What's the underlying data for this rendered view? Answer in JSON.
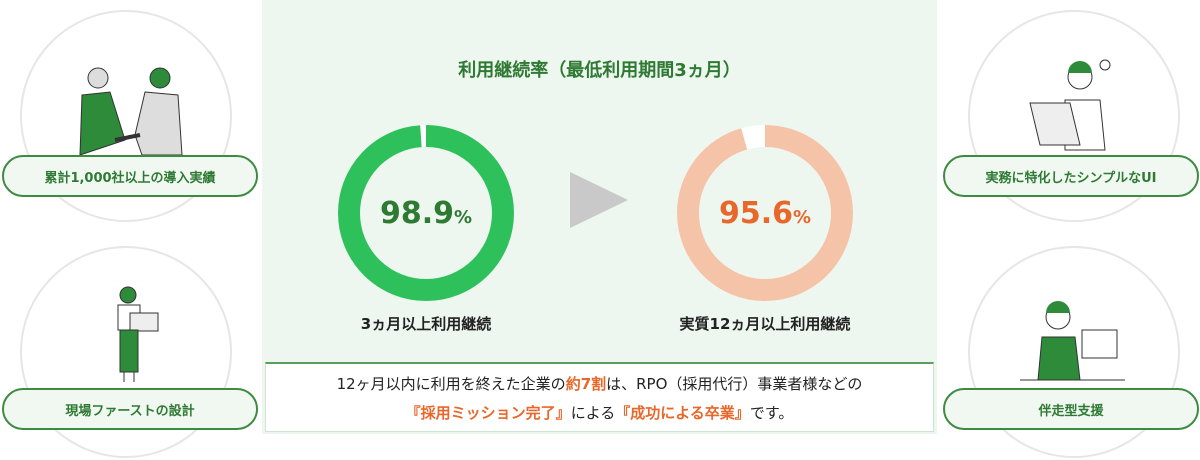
{
  "features": {
    "left": [
      {
        "label": "累計1,000社以上の導入実績",
        "icon": "handshake-illustration"
      },
      {
        "label": "現場ファーストの設計",
        "icon": "woman-with-laptop-illustration"
      }
    ],
    "right": [
      {
        "label": "実務に特化したシンプルなUI",
        "icon": "man-at-laptop-idea-illustration"
      },
      {
        "label": "伴走型支援",
        "icon": "woman-support-illustration"
      }
    ]
  },
  "panel": {
    "title": "利用継続率（最低利用期間3ヵ月）",
    "stats": [
      {
        "value": "98.9",
        "unit": "%",
        "percent": 98.9,
        "label": "3ヵ月以上利用継続",
        "color": "#2ec05a",
        "track": "#ffffff"
      },
      {
        "value": "95.6",
        "unit": "%",
        "percent": 95.6,
        "label": "実質12ヵ月以上利用継続",
        "color": "#f5c3a7",
        "text_color": "#e8672a",
        "track": "#ffffff"
      }
    ],
    "arrow_icon": "triangle-right-icon",
    "note": {
      "line1_a": "12ヶ月以内に利用を終えた企業の",
      "line1_hl": "約7割",
      "line1_b": "は、RPO（採用代行）事業者様などの",
      "line2_hl1": "『採用ミッション完了』",
      "line2_a": "による",
      "line2_hl2": "『成功による卒業』",
      "line2_b": "です。"
    }
  },
  "colors": {
    "brand_green": "#2f7a33",
    "accent_orange": "#e8672a",
    "panel_bg": "#edf6ef"
  }
}
